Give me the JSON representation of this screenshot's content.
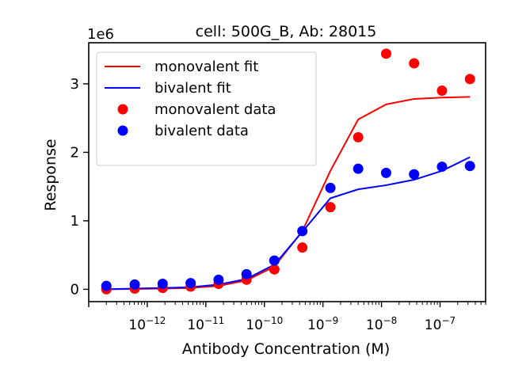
{
  "chart_data": {
    "type": "scatter",
    "title": "cell: 500G_B, Ab: 28015",
    "xlabel": "Antibody Concentration (M)",
    "ylabel": "Response",
    "y_offset_label": "1e6",
    "x_scale": "log",
    "xlim": [
      1e-13,
      6e-07
    ],
    "ylim": [
      -0.18,
      3.6
    ],
    "x_tick_base": "10",
    "x_major_ticks": [
      {
        "value": 1e-12,
        "exp": "−12"
      },
      {
        "value": 1e-11,
        "exp": "−11"
      },
      {
        "value": 1e-10,
        "exp": "−10"
      },
      {
        "value": 1e-09,
        "exp": "−9"
      },
      {
        "value": 1e-08,
        "exp": "−8"
      },
      {
        "value": 1e-07,
        "exp": "−7"
      }
    ],
    "y_ticks": [
      {
        "value": 0,
        "label": "0"
      },
      {
        "value": 1,
        "label": "1"
      },
      {
        "value": 2,
        "label": "2"
      },
      {
        "value": 3,
        "label": "3"
      }
    ],
    "x": [
      2e-13,
      6.1e-13,
      1.83e-12,
      5.5e-12,
      1.65e-11,
      4.95e-11,
      1.48e-10,
      4.45e-10,
      1.34e-09,
      4e-09,
      1.2e-08,
      3.6e-08,
      1.08e-07,
      3.24e-07
    ],
    "series": [
      {
        "name": "monovalent fit",
        "kind": "line",
        "color": "#ff0000",
        "values": [
          0.0,
          0.005,
          0.01,
          0.02,
          0.05,
          0.13,
          0.33,
          0.85,
          1.73,
          2.48,
          2.7,
          2.78,
          2.8,
          2.81
        ]
      },
      {
        "name": "bivalent fit",
        "kind": "line",
        "color": "#0000ff",
        "values": [
          0.0,
          0.01,
          0.02,
          0.03,
          0.07,
          0.15,
          0.36,
          0.84,
          1.33,
          1.46,
          1.52,
          1.6,
          1.73,
          1.93
        ]
      },
      {
        "name": "monovalent data",
        "kind": "scatter",
        "color": "#ff0000",
        "values": [
          0.0,
          0.01,
          0.02,
          0.04,
          0.08,
          0.14,
          0.29,
          0.61,
          1.2,
          2.22,
          3.44,
          3.3,
          2.9,
          3.07
        ]
      },
      {
        "name": "bivalent data",
        "kind": "scatter",
        "color": "#0000ff",
        "values": [
          0.05,
          0.07,
          0.08,
          0.09,
          0.14,
          0.22,
          0.42,
          0.85,
          1.48,
          1.76,
          1.7,
          1.68,
          1.79,
          1.8
        ]
      }
    ],
    "legend": {
      "placement": "top-left",
      "entries": [
        "monovalent fit",
        "bivalent fit",
        "monovalent data",
        "bivalent data"
      ]
    },
    "grid": false
  }
}
